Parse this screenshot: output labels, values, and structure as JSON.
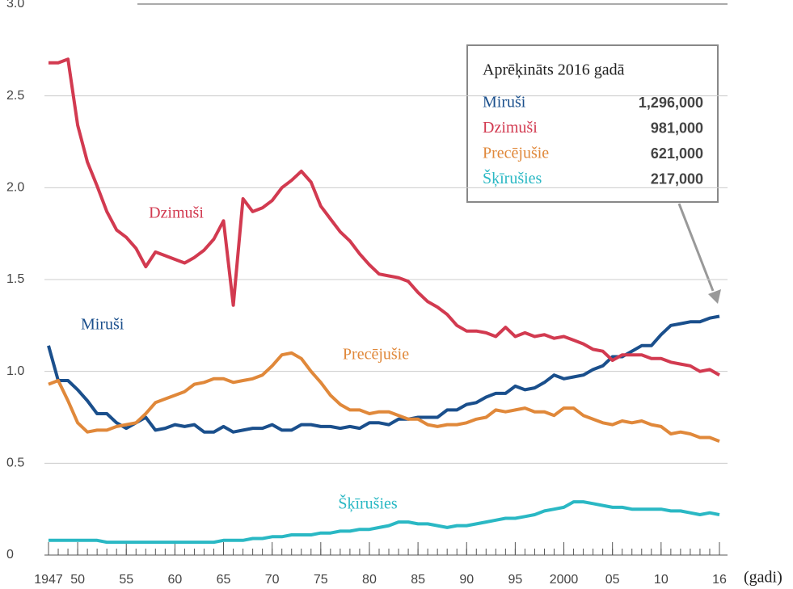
{
  "chart_data": {
    "type": "line",
    "x_label": "(gadi)",
    "x": [
      1947,
      1948,
      1949,
      1950,
      1951,
      1952,
      1953,
      1954,
      1955,
      1956,
      1957,
      1958,
      1959,
      1960,
      1961,
      1962,
      1963,
      1964,
      1965,
      1966,
      1967,
      1968,
      1969,
      1970,
      1971,
      1972,
      1973,
      1974,
      1975,
      1976,
      1977,
      1978,
      1979,
      1980,
      1981,
      1982,
      1983,
      1984,
      1985,
      1986,
      1987,
      1988,
      1989,
      1990,
      1991,
      1992,
      1993,
      1994,
      1995,
      1996,
      1997,
      1998,
      1999,
      2000,
      2001,
      2002,
      2003,
      2004,
      2005,
      2006,
      2007,
      2008,
      2009,
      2010,
      2011,
      2012,
      2013,
      2014,
      2015,
      2016
    ],
    "xlim": [
      1947,
      2016
    ],
    "xticks": [
      1947,
      {
        "value": 1950,
        "label": "50"
      },
      {
        "value": 1955,
        "label": "55"
      },
      {
        "value": 1960,
        "label": "60"
      },
      {
        "value": 1965,
        "label": "65"
      },
      {
        "value": 1970,
        "label": "70"
      },
      {
        "value": 1975,
        "label": "75"
      },
      {
        "value": 1980,
        "label": "80"
      },
      {
        "value": 1985,
        "label": "85"
      },
      {
        "value": 1990,
        "label": "90"
      },
      {
        "value": 1995,
        "label": "95"
      },
      2000,
      {
        "value": 2005,
        "label": "05"
      },
      {
        "value": 2010,
        "label": "10"
      },
      {
        "value": 2016,
        "label": "16"
      }
    ],
    "ylim": [
      0,
      3
    ],
    "yticks": [
      0,
      0.5,
      {
        "value": 1,
        "label": "1.0"
      },
      1.5,
      {
        "value": 2,
        "label": "2.0"
      },
      2.5,
      {
        "value": 3,
        "label": "3.0"
      }
    ],
    "grid": true,
    "series": [
      {
        "name": "Miruši",
        "color": "#1a4f8c",
        "values": [
          1.14,
          0.95,
          0.95,
          0.9,
          0.84,
          0.77,
          0.77,
          0.72,
          0.69,
          0.72,
          0.75,
          0.68,
          0.69,
          0.71,
          0.7,
          0.71,
          0.67,
          0.67,
          0.7,
          0.67,
          0.68,
          0.69,
          0.69,
          0.71,
          0.68,
          0.68,
          0.71,
          0.71,
          0.7,
          0.7,
          0.69,
          0.7,
          0.69,
          0.72,
          0.72,
          0.71,
          0.74,
          0.74,
          0.75,
          0.75,
          0.75,
          0.79,
          0.79,
          0.82,
          0.83,
          0.86,
          0.88,
          0.88,
          0.92,
          0.9,
          0.91,
          0.94,
          0.98,
          0.96,
          0.97,
          0.98,
          1.01,
          1.03,
          1.08,
          1.08,
          1.11,
          1.14,
          1.14,
          1.2,
          1.25,
          1.26,
          1.27,
          1.27,
          1.29,
          1.3
        ]
      },
      {
        "name": "Dzimuši",
        "color": "#d23a50",
        "values": [
          2.68,
          2.68,
          2.7,
          2.34,
          2.14,
          2.01,
          1.87,
          1.77,
          1.73,
          1.67,
          1.57,
          1.65,
          1.63,
          1.61,
          1.59,
          1.62,
          1.66,
          1.72,
          1.82,
          1.36,
          1.94,
          1.87,
          1.89,
          1.93,
          2.0,
          2.04,
          2.09,
          2.03,
          1.9,
          1.83,
          1.76,
          1.71,
          1.64,
          1.58,
          1.53,
          1.52,
          1.51,
          1.49,
          1.43,
          1.38,
          1.35,
          1.31,
          1.25,
          1.22,
          1.22,
          1.21,
          1.19,
          1.24,
          1.19,
          1.21,
          1.19,
          1.2,
          1.18,
          1.19,
          1.17,
          1.15,
          1.12,
          1.11,
          1.06,
          1.09,
          1.09,
          1.09,
          1.07,
          1.07,
          1.05,
          1.04,
          1.03,
          1.0,
          1.01,
          0.98
        ]
      },
      {
        "name": "Precējušie",
        "color": "#e0883a",
        "values": [
          0.93,
          0.95,
          0.84,
          0.72,
          0.67,
          0.68,
          0.68,
          0.7,
          0.71,
          0.72,
          0.77,
          0.83,
          0.85,
          0.87,
          0.89,
          0.93,
          0.94,
          0.96,
          0.96,
          0.94,
          0.95,
          0.96,
          0.98,
          1.03,
          1.09,
          1.1,
          1.07,
          1.0,
          0.94,
          0.87,
          0.82,
          0.79,
          0.79,
          0.77,
          0.78,
          0.78,
          0.76,
          0.74,
          0.74,
          0.71,
          0.7,
          0.71,
          0.71,
          0.72,
          0.74,
          0.75,
          0.79,
          0.78,
          0.79,
          0.8,
          0.78,
          0.78,
          0.76,
          0.8,
          0.8,
          0.76,
          0.74,
          0.72,
          0.71,
          0.73,
          0.72,
          0.73,
          0.71,
          0.7,
          0.66,
          0.67,
          0.66,
          0.64,
          0.64,
          0.62
        ]
      },
      {
        "name": "Šķīrušies",
        "color": "#2ab8c4",
        "values": [
          0.08,
          0.08,
          0.08,
          0.08,
          0.08,
          0.08,
          0.07,
          0.07,
          0.07,
          0.07,
          0.07,
          0.07,
          0.07,
          0.07,
          0.07,
          0.07,
          0.07,
          0.07,
          0.08,
          0.08,
          0.08,
          0.09,
          0.09,
          0.1,
          0.1,
          0.11,
          0.11,
          0.11,
          0.12,
          0.12,
          0.13,
          0.13,
          0.14,
          0.14,
          0.15,
          0.16,
          0.18,
          0.18,
          0.17,
          0.17,
          0.16,
          0.15,
          0.16,
          0.16,
          0.17,
          0.18,
          0.19,
          0.2,
          0.2,
          0.21,
          0.22,
          0.24,
          0.25,
          0.26,
          0.29,
          0.29,
          0.28,
          0.27,
          0.26,
          0.26,
          0.25,
          0.25,
          0.25,
          0.25,
          0.24,
          0.24,
          0.23,
          0.22,
          0.23,
          0.22
        ]
      }
    ],
    "legend_box": {
      "title": "Aprēķināts 2016 gadā",
      "values": [
        1296000,
        981000,
        621000,
        217000
      ],
      "value_labels": [
        "1,296,000",
        "981,000",
        "621,000",
        "217,000"
      ]
    }
  }
}
